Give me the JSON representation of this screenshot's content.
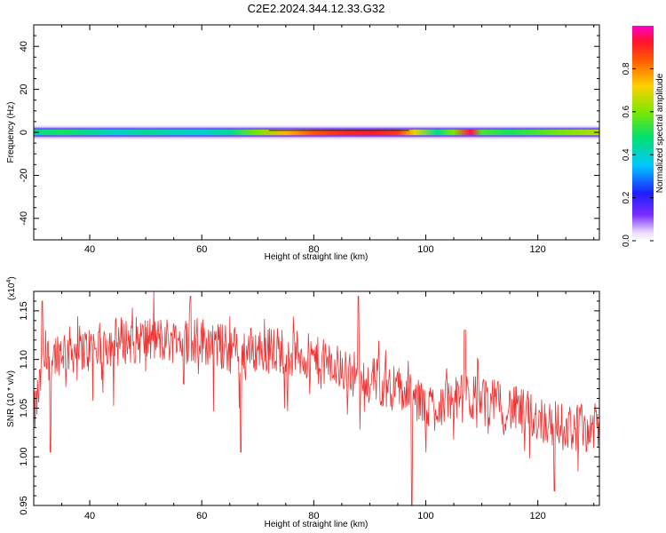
{
  "title": "C2E2.2024.344.12.33.G32",
  "chart_data": [
    {
      "type": "heatmap",
      "xlabel": "Height of straight line (km)",
      "ylabel": "Frequency (Hz)",
      "xlim": [
        30,
        131
      ],
      "ylim": [
        -50,
        50
      ],
      "xticks": [
        40,
        60,
        80,
        100,
        120
      ],
      "yticks": [
        -40,
        -20,
        0,
        20,
        40
      ],
      "xtick_labels": [
        "40",
        "60",
        "80",
        "100",
        "120"
      ],
      "ytick_labels": [
        "-40",
        "-20",
        "0",
        "20",
        "40"
      ],
      "colorbar": {
        "label": "Normalized spectral amplitude",
        "range": [
          0,
          1
        ],
        "ticks": [
          0.0,
          0.2,
          0.4,
          0.6,
          0.8
        ],
        "tick_labels": [
          "0.0",
          "0.2",
          "0.4",
          "0.6",
          "0.8"
        ]
      },
      "band": {
        "center_hz": 0,
        "half_width_hz": 3,
        "amplitude_profile": [
          {
            "x": 30,
            "amp": 0.45
          },
          {
            "x": 35,
            "amp": 0.5
          },
          {
            "x": 40,
            "amp": 0.45
          },
          {
            "x": 45,
            "amp": 0.4
          },
          {
            "x": 50,
            "amp": 0.45
          },
          {
            "x": 55,
            "amp": 0.42
          },
          {
            "x": 60,
            "amp": 0.4
          },
          {
            "x": 65,
            "amp": 0.45
          },
          {
            "x": 70,
            "amp": 0.6
          },
          {
            "x": 75,
            "amp": 0.75
          },
          {
            "x": 80,
            "amp": 0.85
          },
          {
            "x": 85,
            "amp": 0.9
          },
          {
            "x": 90,
            "amp": 0.92
          },
          {
            "x": 95,
            "amp": 0.88
          },
          {
            "x": 98,
            "amp": 0.7
          },
          {
            "x": 102,
            "amp": 0.45
          },
          {
            "x": 105,
            "amp": 0.6
          },
          {
            "x": 108,
            "amp": 0.95
          },
          {
            "x": 110,
            "amp": 0.55
          },
          {
            "x": 115,
            "amp": 0.5
          },
          {
            "x": 120,
            "amp": 0.55
          },
          {
            "x": 125,
            "amp": 0.6
          },
          {
            "x": 131,
            "amp": 0.65
          }
        ]
      }
    },
    {
      "type": "line",
      "xlabel": "Height of straight line (km)",
      "ylabel": "SNR (10 * v/v)",
      "multiplier_label": "(x10",
      "multiplier_exp": "4",
      "multiplier_close": ")",
      "xlim": [
        30,
        131
      ],
      "ylim": [
        0.95,
        1.17
      ],
      "xticks": [
        40,
        60,
        80,
        100,
        120
      ],
      "yticks": [
        0.95,
        1.0,
        1.05,
        1.1,
        1.15
      ],
      "xtick_labels": [
        "40",
        "60",
        "80",
        "100",
        "120"
      ],
      "ytick_labels": [
        "0.95",
        "1.00",
        "1.05",
        "1.10",
        "1.15"
      ],
      "series": [
        {
          "color": "#ee3333",
          "trend": [
            {
              "x": 30,
              "y": 1.04
            },
            {
              "x": 32,
              "y": 1.1
            },
            {
              "x": 35,
              "y": 1.11
            },
            {
              "x": 40,
              "y": 1.11
            },
            {
              "x": 45,
              "y": 1.12
            },
            {
              "x": 50,
              "y": 1.12
            },
            {
              "x": 55,
              "y": 1.12
            },
            {
              "x": 60,
              "y": 1.12
            },
            {
              "x": 65,
              "y": 1.11
            },
            {
              "x": 70,
              "y": 1.11
            },
            {
              "x": 75,
              "y": 1.11
            },
            {
              "x": 80,
              "y": 1.1
            },
            {
              "x": 85,
              "y": 1.09
            },
            {
              "x": 90,
              "y": 1.08
            },
            {
              "x": 95,
              "y": 1.07
            },
            {
              "x": 100,
              "y": 1.05
            },
            {
              "x": 105,
              "y": 1.06
            },
            {
              "x": 110,
              "y": 1.06
            },
            {
              "x": 115,
              "y": 1.05
            },
            {
              "x": 120,
              "y": 1.04
            },
            {
              "x": 125,
              "y": 1.03
            },
            {
              "x": 131,
              "y": 1.03
            }
          ],
          "spikes": [
            {
              "x": 31.5,
              "y": 1.16
            },
            {
              "x": 33,
              "y": 1.005
            },
            {
              "x": 58,
              "y": 1.165
            },
            {
              "x": 67,
              "y": 1.005
            },
            {
              "x": 88,
              "y": 1.165
            },
            {
              "x": 97.5,
              "y": 0.95
            },
            {
              "x": 107,
              "y": 1.13
            },
            {
              "x": 123,
              "y": 0.965
            }
          ]
        }
      ]
    }
  ]
}
